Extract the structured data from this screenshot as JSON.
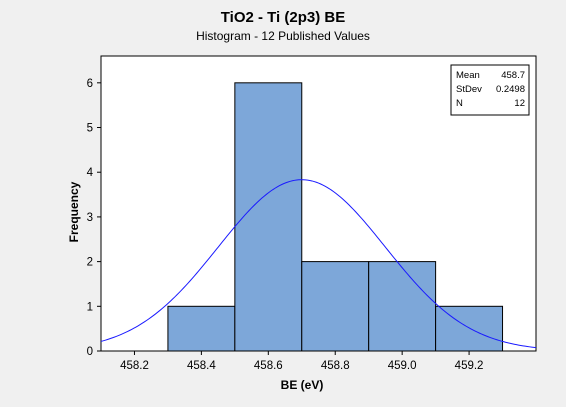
{
  "chart_data": {
    "type": "bar",
    "title": "TiO2 - Ti (2p3) BE",
    "subtitle": "Histogram - 12 Published Values",
    "xlabel": "BE (eV)",
    "ylabel": "Frequency",
    "xlim": [
      458.1,
      459.4
    ],
    "ylim": [
      0,
      6.6
    ],
    "xticks": [
      "458.2",
      "458.4",
      "458.6",
      "458.8",
      "459.0",
      "459.2"
    ],
    "yticks": [
      "0",
      "1",
      "2",
      "3",
      "4",
      "5",
      "6"
    ],
    "bins": [
      {
        "start": 458.3,
        "end": 458.5,
        "count": 1
      },
      {
        "start": 458.5,
        "end": 458.7,
        "count": 6
      },
      {
        "start": 458.7,
        "end": 458.9,
        "count": 2
      },
      {
        "start": 458.9,
        "end": 459.1,
        "count": 2
      },
      {
        "start": 459.1,
        "end": 459.3,
        "count": 1
      }
    ],
    "fit_curve": {
      "type": "normal",
      "mean": 458.7,
      "stdev": 0.2498,
      "n": 12,
      "bin_width": 0.2
    },
    "legend": {
      "placement": "top-right",
      "rows": [
        {
          "label": "Mean",
          "value": "458.7"
        },
        {
          "label": "StDev",
          "value": "0.2498"
        },
        {
          "label": "N",
          "value": "12"
        }
      ]
    },
    "colors": {
      "bar_fill": "#7da7d9",
      "bar_stroke": "#000000",
      "curve": "#1a1aff",
      "plot_bg": "#ffffff",
      "page_bg": "#f0f0f0"
    },
    "grid": false
  }
}
